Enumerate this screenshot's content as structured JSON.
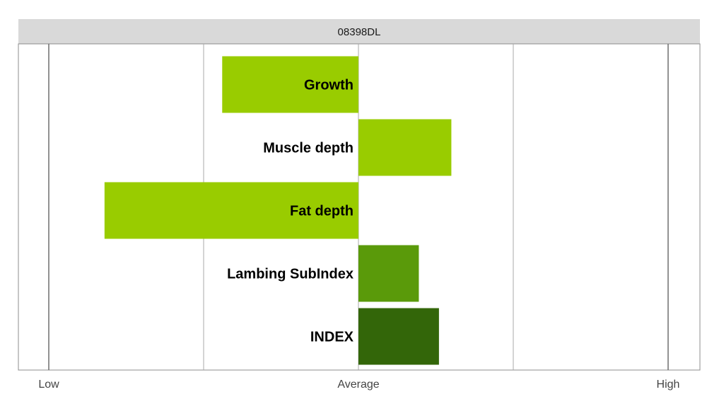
{
  "chart_data": {
    "type": "bar",
    "orientation": "horizontal",
    "title": "08398DL",
    "categories": [
      "Growth",
      "Muscle depth",
      "Fat depth",
      "Lambing SubIndex",
      "INDEX"
    ],
    "values": [
      -0.44,
      0.3,
      -0.82,
      0.195,
      0.26
    ],
    "bar_colors": [
      "#99cc00",
      "#99cc00",
      "#99cc00",
      "#5a9a0a",
      "#336609"
    ],
    "xlim": [
      -1,
      1
    ],
    "x_ticks": [
      {
        "value": -1,
        "label": "Low"
      },
      {
        "value": 0,
        "label": "Average"
      },
      {
        "value": 1,
        "label": "High"
      }
    ],
    "minor_gridlines": [
      -0.5,
      0.5
    ],
    "grid": true,
    "legend": "none"
  },
  "colors": {
    "strip_background": "#d9d9d9",
    "panel_border": "#8c8c8c",
    "gridline": "#aaaaaa",
    "major_gridline": "#6e6e6e"
  }
}
